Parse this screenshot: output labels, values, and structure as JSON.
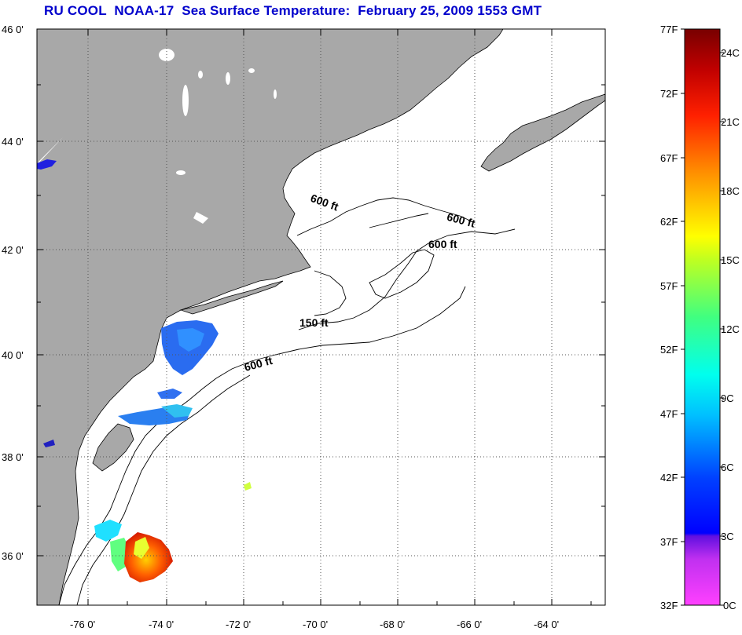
{
  "title": "RU COOL  NOAA-17  Sea Surface Temperature:  February 25, 2009 1553 GMT",
  "map": {
    "lat_labels": [
      "46 0'",
      "44 0'",
      "42 0'",
      "40 0'",
      "38 0'",
      "36 0'"
    ],
    "lon_labels": [
      "-76 0'",
      "-74 0'",
      "-72 0'",
      "-70 0'",
      "-68 0'",
      "-66 0'",
      "-64 0'"
    ],
    "contour_labels": [
      "600 ft",
      "600 ft",
      "600 ft",
      "150 ft",
      "600 ft"
    ],
    "colors": {
      "land": "#a8a8a8",
      "water": "#ffffff",
      "grid": "#555555"
    }
  },
  "colorbar": {
    "f_labels": [
      "77F",
      "72F",
      "67F",
      "62F",
      "57F",
      "52F",
      "47F",
      "42F",
      "37F",
      "32F"
    ],
    "c_labels": [
      "24C",
      "21C",
      "18C",
      "15C",
      "12C",
      "9C",
      "6C",
      "3C",
      "0C"
    ],
    "gradient": [
      "#ff40ff",
      "#9020e0",
      "#0000ff",
      "#0080ff",
      "#00ffff",
      "#40ff80",
      "#ffff00",
      "#ff9000",
      "#ff0000",
      "#800000"
    ]
  }
}
